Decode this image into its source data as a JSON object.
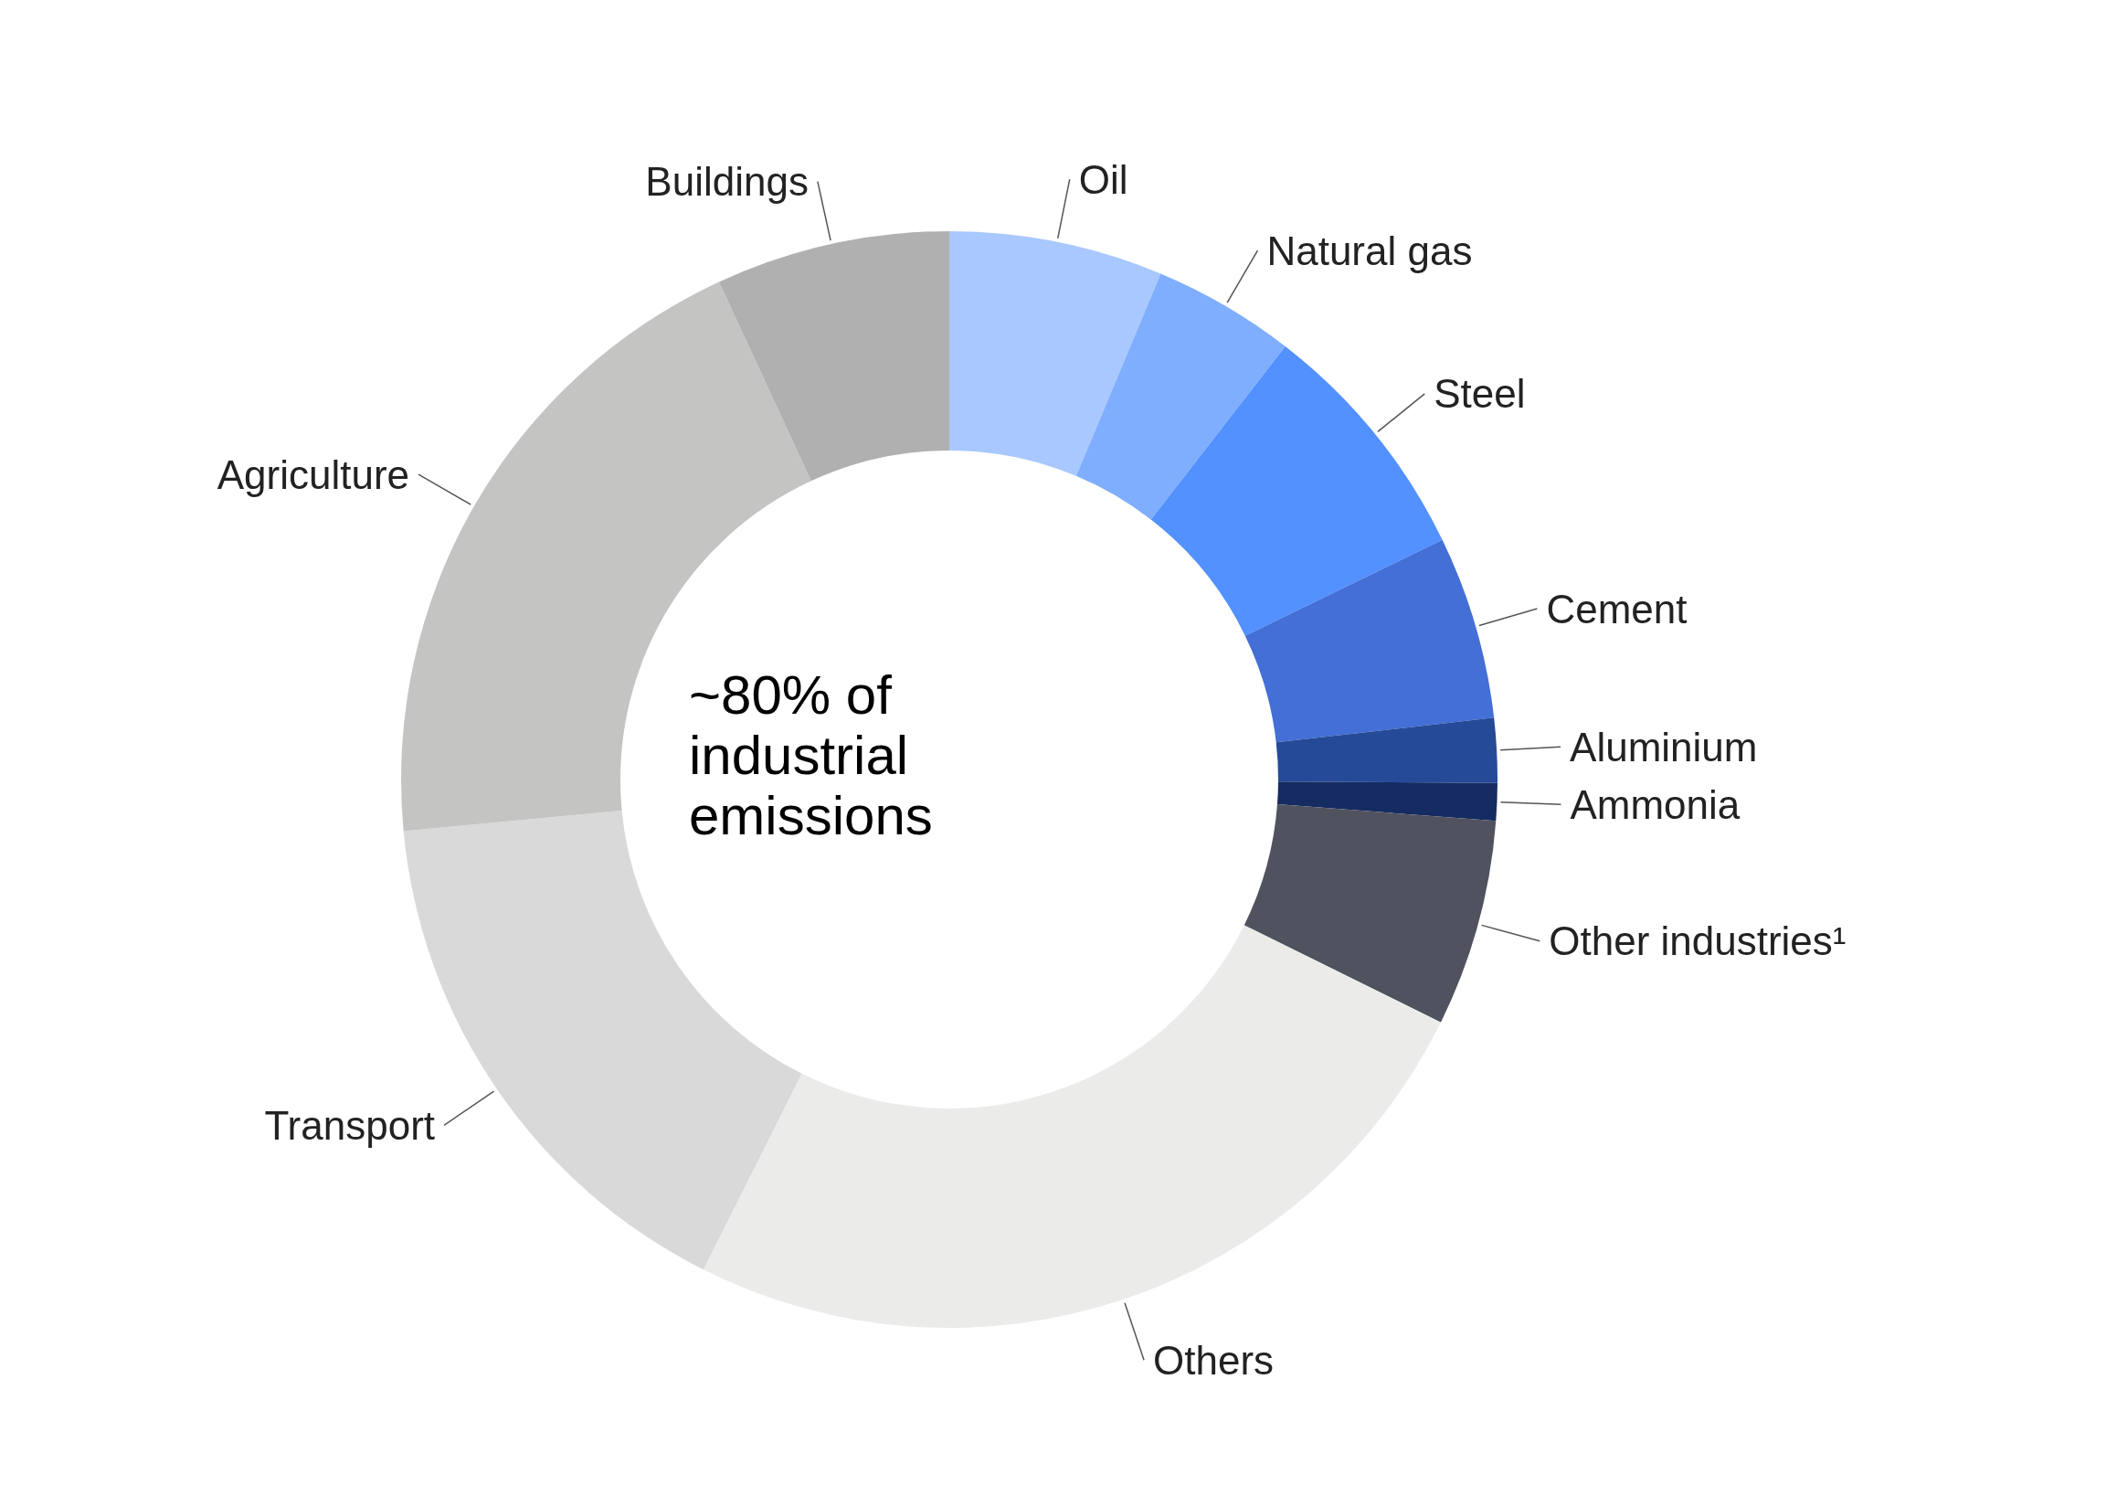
{
  "chart_data": {
    "type": "donut",
    "categories": [
      "Oil",
      "Natural gas",
      "Steel",
      "Cement",
      "Aluminium",
      "Ammonia",
      "Other industries¹",
      "Others",
      "Transport",
      "Agriculture",
      "Buildings"
    ],
    "values": [
      6.3,
      4.2,
      7.3,
      5.4,
      1.9,
      1.1,
      6.1,
      25.1,
      16.1,
      19.6,
      6.9
    ],
    "colors": [
      "#a8c8ff",
      "#80aeff",
      "#5291ff",
      "#436fd6",
      "#254a98",
      "#152b62",
      "#50535f",
      "#ebebe9",
      "#d9d9d9",
      "#c4c4c2",
      "#b0b0b0"
    ],
    "annotations": [
      "~80% of industrial emissions"
    ]
  }
}
